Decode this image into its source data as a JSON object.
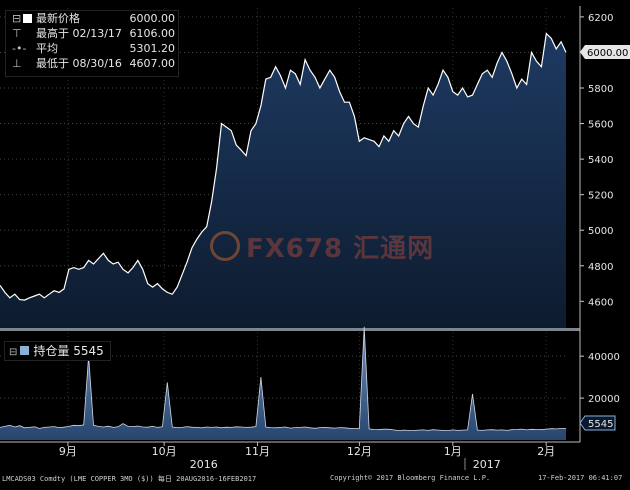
{
  "legend": {
    "last_label": "最新价格",
    "last_value": "6000.00",
    "high_label": "最高于 02/13/17",
    "high_value": "6106.00",
    "avg_label": "平均",
    "avg_value": "5301.20",
    "low_label": "最低于 08/30/16",
    "low_value": "4607.00"
  },
  "oi_legend": {
    "label": "持仓量",
    "value": "5545"
  },
  "price_tag": "6000.00",
  "oi_tag": "5545",
  "watermark": "FX678 汇通网",
  "footer": {
    "left": "LMCADS03 Comdty (LME COPPER   3MO ($))  每日 20AUG2016-16FEB2017",
    "center": "Copyright© 2017 Bloomberg Finance L.P.",
    "right": "17-Feb-2017 06:41:07"
  },
  "colors": {
    "fill_top": "#1e3a62",
    "fill_bottom": "#0d1b2e",
    "line": "#ffffff",
    "oi_fill": "#6e8fb8"
  },
  "chart_data": [
    {
      "type": "area",
      "title": "LME COPPER 3MO ($)",
      "ylim": [
        4450,
        6250
      ],
      "yticks": [
        4600,
        4800,
        5000,
        5200,
        5400,
        5600,
        5800,
        6000,
        6200
      ],
      "xticks": [
        {
          "label": "9月",
          "t": 0.12
        },
        {
          "label": "10月",
          "t": 0.29
        },
        {
          "label": "11月",
          "t": 0.455
        },
        {
          "label": "12月",
          "t": 0.635
        },
        {
          "label": "1月",
          "t": 0.8
        },
        {
          "label": "2月",
          "t": 0.965
        }
      ],
      "year_labels": [
        {
          "label": "2016",
          "t": 0.36
        },
        {
          "label": "2017",
          "t": 0.86
        }
      ],
      "values": [
        4690,
        4650,
        4620,
        4640,
        4610,
        4607,
        4620,
        4630,
        4640,
        4620,
        4640,
        4660,
        4650,
        4670,
        4780,
        4790,
        4780,
        4790,
        4830,
        4810,
        4840,
        4870,
        4830,
        4810,
        4820,
        4780,
        4760,
        4790,
        4830,
        4780,
        4700,
        4680,
        4700,
        4670,
        4650,
        4640,
        4680,
        4750,
        4820,
        4900,
        4950,
        4990,
        5020,
        5160,
        5350,
        5600,
        5580,
        5560,
        5480,
        5450,
        5420,
        5560,
        5600,
        5700,
        5850,
        5860,
        5920,
        5870,
        5800,
        5900,
        5880,
        5820,
        5960,
        5900,
        5860,
        5800,
        5850,
        5900,
        5860,
        5780,
        5720,
        5720,
        5640,
        5500,
        5520,
        5510,
        5500,
        5470,
        5530,
        5500,
        5560,
        5530,
        5600,
        5640,
        5600,
        5580,
        5700,
        5800,
        5760,
        5820,
        5900,
        5860,
        5780,
        5760,
        5800,
        5750,
        5760,
        5820,
        5880,
        5900,
        5860,
        5940,
        6000,
        5950,
        5880,
        5800,
        5850,
        5820,
        6000,
        5950,
        5920,
        6106,
        6080,
        6020,
        6060,
        6000
      ],
      "last": 6000.0,
      "high": 6106.0,
      "average": 5301.2,
      "low": 4607.0
    },
    {
      "type": "area",
      "title": "持仓量",
      "ylim": [
        0,
        52000
      ],
      "yticks": [
        20000,
        40000
      ],
      "values": [
        6000,
        6500,
        7000,
        6200,
        6800,
        5800,
        6000,
        6300,
        5500,
        6000,
        6200,
        6400,
        5900,
        6100,
        6500,
        7000,
        6800,
        7200,
        40000,
        7000,
        6500,
        6200,
        6600,
        6000,
        6300,
        7800,
        6500,
        6400,
        6700,
        6200,
        6100,
        6500,
        6000,
        6300,
        27500,
        6200,
        5900,
        6000,
        6400,
        6100,
        6000,
        5800,
        6200,
        6000,
        6200,
        5800,
        6100,
        6000,
        6300,
        6200,
        6000,
        6100,
        6400,
        30000,
        6200,
        5900,
        5800,
        6000,
        6200,
        5700,
        5900,
        6000,
        6200,
        5800,
        5600,
        5900,
        6000,
        5800,
        5700,
        5900,
        5800,
        5600,
        5500,
        5400,
        54000,
        5300,
        5000,
        4900,
        5200,
        5100,
        4800,
        4500,
        4700,
        4600,
        4500,
        4700,
        4800,
        4600,
        4900,
        4700,
        4600,
        4500,
        4800,
        4600,
        4700,
        4800,
        22000,
        4700,
        4600,
        4800,
        4900,
        4700,
        4800,
        4600,
        4900,
        5000,
        5200,
        4800,
        5100,
        5000,
        4900,
        5200,
        5400,
        5300,
        5500,
        5545
      ],
      "last": 5545
    }
  ]
}
